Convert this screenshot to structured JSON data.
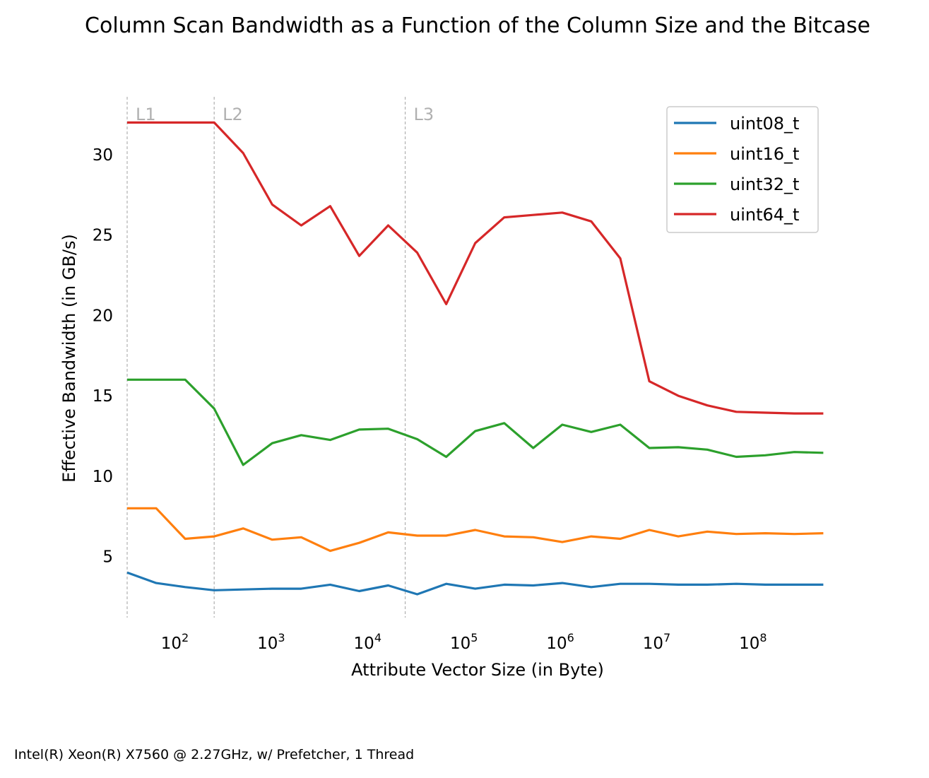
{
  "footer": "Intel(R) Xeon(R) X7560 @ 2.27GHz, w/ Prefetcher, 1 Thread",
  "chart_data": {
    "type": "line",
    "title": "Column Scan Bandwidth as a Function of the Column Size and the Bitcase",
    "xlabel": "Attribute Vector Size (in Byte)",
    "ylabel": "Effective Bandwidth (in GB/s)",
    "xscale": "log",
    "xlim": [
      32,
      600000000
    ],
    "ylim": [
      1.2,
      33.6
    ],
    "x_ticks": [
      {
        "value": 100,
        "base": "10",
        "exp": "2"
      },
      {
        "value": 1000,
        "base": "10",
        "exp": "3"
      },
      {
        "value": 10000,
        "base": "10",
        "exp": "4"
      },
      {
        "value": 100000,
        "base": "10",
        "exp": "5"
      },
      {
        "value": 1000000,
        "base": "10",
        "exp": "6"
      },
      {
        "value": 10000000,
        "base": "10",
        "exp": "7"
      },
      {
        "value": 100000000,
        "base": "10",
        "exp": "8"
      }
    ],
    "y_ticks": [
      5,
      10,
      15,
      20,
      25,
      30
    ],
    "grid": false,
    "legend": "upper right",
    "cache_lines": [
      {
        "label": "L1",
        "x": 32
      },
      {
        "label": "L2",
        "x": 256
      },
      {
        "label": "L3",
        "x": 24576
      }
    ],
    "x": [
      32,
      64,
      128,
      256,
      512,
      1024,
      2048,
      4096,
      8192,
      16384,
      32768,
      65536,
      131072,
      262144,
      524288,
      1048576,
      2097152,
      4194304,
      8388608,
      16777216,
      33554432,
      67108864,
      134217728,
      268435456,
      536870912
    ],
    "series": [
      {
        "name": "uint08_t",
        "color": "#1f77b4",
        "values": [
          4.0,
          3.35,
          3.1,
          2.9,
          2.95,
          3.0,
          3.0,
          3.25,
          2.85,
          3.2,
          2.65,
          3.3,
          3.0,
          3.25,
          3.2,
          3.35,
          3.1,
          3.3,
          3.3,
          3.25,
          3.25,
          3.3,
          3.25,
          3.25,
          3.25
        ]
      },
      {
        "name": "uint16_t",
        "color": "#ff7f0e",
        "values": [
          8.0,
          8.0,
          6.1,
          6.25,
          6.75,
          6.05,
          6.2,
          5.35,
          5.85,
          6.5,
          6.3,
          6.3,
          6.65,
          6.25,
          6.2,
          5.9,
          6.25,
          6.1,
          6.65,
          6.25,
          6.55,
          6.4,
          6.45,
          6.4,
          6.45
        ]
      },
      {
        "name": "uint32_t",
        "color": "#2ca02c",
        "values": [
          16.0,
          16.0,
          16.0,
          14.2,
          10.7,
          12.05,
          12.55,
          12.25,
          12.9,
          12.95,
          12.3,
          11.2,
          12.8,
          13.3,
          11.75,
          13.2,
          12.75,
          13.2,
          11.75,
          11.8,
          11.65,
          11.2,
          11.3,
          11.5,
          11.45
        ]
      },
      {
        "name": "uint64_t",
        "color": "#d62728",
        "values": [
          32.0,
          32.0,
          32.0,
          32.0,
          30.1,
          26.9,
          25.6,
          26.8,
          23.7,
          25.6,
          23.9,
          20.7,
          24.5,
          26.1,
          26.25,
          26.4,
          25.85,
          23.55,
          15.9,
          15.0,
          14.4,
          14.0,
          13.95,
          13.9,
          13.9
        ]
      }
    ]
  }
}
